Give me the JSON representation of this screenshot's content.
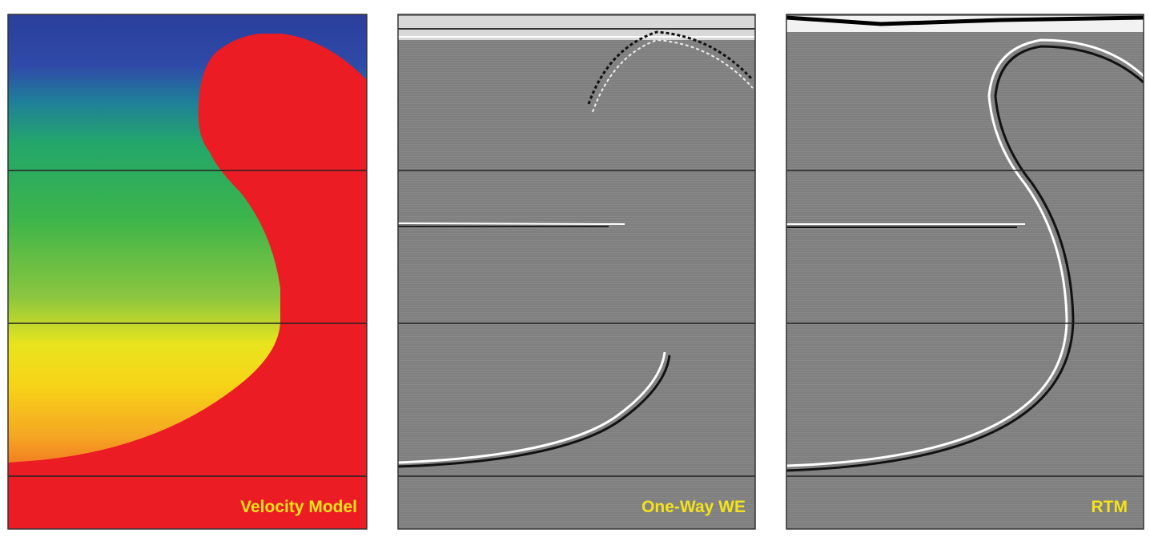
{
  "panels": [
    {
      "label": "Velocity Model"
    },
    {
      "label": "One-Way WE"
    },
    {
      "label": "RTM"
    }
  ]
}
